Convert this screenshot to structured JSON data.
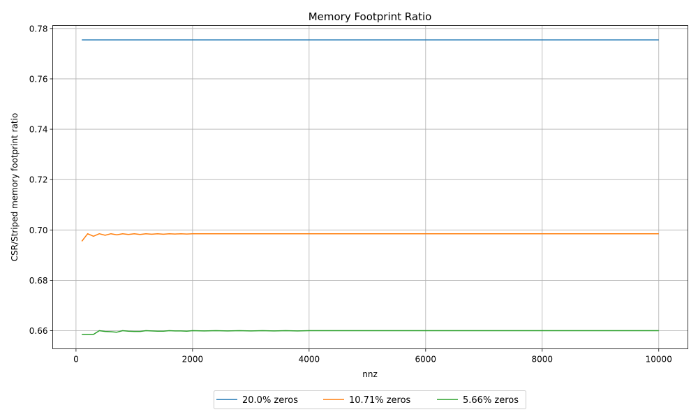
{
  "chart_data": {
    "type": "line",
    "title": "Memory Footprint Ratio",
    "xlabel": "nnz",
    "ylabel": "CSR/Striped memory footprint ratio",
    "xlim": [
      -400,
      10500
    ],
    "ylim": [
      0.6528,
      0.7812
    ],
    "xticks": [
      0,
      2000,
      4000,
      6000,
      8000,
      10000
    ],
    "yticks": [
      0.66,
      0.68,
      0.7,
      0.72,
      0.74,
      0.76,
      0.78
    ],
    "ytick_labels": [
      "0.66",
      "0.68",
      "0.70",
      "0.72",
      "0.74",
      "0.76",
      "0.78"
    ],
    "grid": true,
    "legend_position": "bottom-center-outside",
    "series": [
      {
        "name": "20.0% zeros",
        "color": "#1f77b4",
        "x": [
          100,
          10000
        ],
        "y": [
          0.7755,
          0.7755
        ]
      },
      {
        "name": "10.71% zeros",
        "color": "#ff7f0e",
        "x": [
          100,
          200,
          300,
          400,
          500,
          600,
          700,
          800,
          900,
          1000,
          1100,
          1200,
          1300,
          1400,
          1500,
          1600,
          1700,
          1800,
          1900,
          2000,
          2500,
          3000,
          3500,
          4000,
          5000,
          6000,
          7000,
          8000,
          9000,
          10000
        ],
        "y": [
          0.6955,
          0.6985,
          0.6975,
          0.6985,
          0.6979,
          0.6985,
          0.6981,
          0.6985,
          0.6982,
          0.6985,
          0.6982,
          0.6985,
          0.6983,
          0.6985,
          0.6983,
          0.6985,
          0.6984,
          0.6985,
          0.6984,
          0.6985,
          0.6985,
          0.6985,
          0.6985,
          0.6985,
          0.6985,
          0.6985,
          0.6985,
          0.6985,
          0.6985,
          0.6985
        ]
      },
      {
        "name": "5.66% zeros",
        "color": "#2ca02c",
        "x": [
          100,
          200,
          300,
          400,
          500,
          600,
          700,
          800,
          900,
          1000,
          1100,
          1200,
          1300,
          1400,
          1500,
          1600,
          1700,
          1800,
          1900,
          2000,
          2200,
          2400,
          2600,
          2800,
          3000,
          3200,
          3400,
          3600,
          3800,
          4000,
          5000,
          6000,
          7000,
          8000,
          9000,
          10000
        ],
        "y": [
          0.6585,
          0.6585,
          0.6585,
          0.66,
          0.6597,
          0.6596,
          0.6594,
          0.66,
          0.6598,
          0.6597,
          0.6597,
          0.66,
          0.6599,
          0.6598,
          0.6598,
          0.66,
          0.6599,
          0.6599,
          0.6598,
          0.66,
          0.6599,
          0.66,
          0.6599,
          0.66,
          0.6599,
          0.66,
          0.6599,
          0.66,
          0.6599,
          0.66,
          0.66,
          0.66,
          0.66,
          0.66,
          0.66,
          0.66
        ]
      }
    ]
  }
}
